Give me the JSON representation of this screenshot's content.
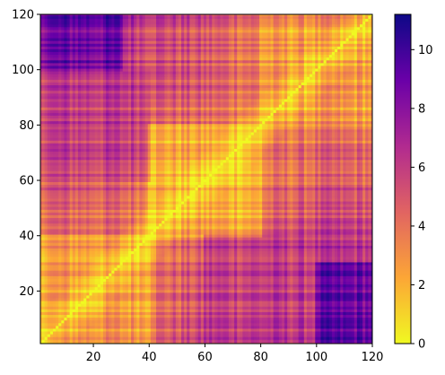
{
  "chart_data": {
    "type": "heatmap",
    "title": "",
    "xlabel": "",
    "ylabel": "",
    "xlim": [
      1,
      120
    ],
    "ylim": [
      1,
      120
    ],
    "matrix_size": 120,
    "x_ticks": [
      20,
      40,
      60,
      80,
      100,
      120
    ],
    "y_ticks": [
      20,
      40,
      60,
      80,
      100,
      120
    ],
    "colormap": "plasma_r",
    "colorbar": {
      "min": 0,
      "max": 11.2,
      "ticks": [
        0,
        2,
        4,
        6,
        8,
        10
      ]
    },
    "diagonal_value": 0,
    "region_estimates": [
      {
        "rows": [
          1,
          40
        ],
        "cols": [
          1,
          40
        ],
        "typical_value": 2.5
      },
      {
        "rows": [
          40,
          80
        ],
        "cols": [
          40,
          80
        ],
        "typical_value": 2.0
      },
      {
        "rows": [
          80,
          120
        ],
        "cols": [
          80,
          120
        ],
        "typical_value": 2.5
      },
      {
        "rows": [
          1,
          30
        ],
        "cols": [
          100,
          120
        ],
        "typical_value": 9.0
      },
      {
        "rows": [
          100,
          120
        ],
        "cols": [
          1,
          30
        ],
        "typical_value": 9.0
      },
      {
        "rows": [
          1,
          40
        ],
        "cols": [
          60,
          100
        ],
        "typical_value": 6.0
      },
      {
        "rows": [
          60,
          100
        ],
        "cols": [
          1,
          40
        ],
        "typical_value": 6.0
      }
    ],
    "grid": false,
    "legend": "none"
  },
  "colors": {
    "axis": "#000000",
    "colormap_stops": [
      "#f0f921",
      "#fca636",
      "#e16462",
      "#b12a90",
      "#6a00a8",
      "#0d0887"
    ]
  }
}
